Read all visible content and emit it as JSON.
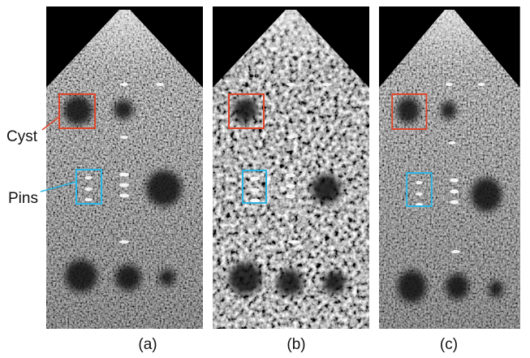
{
  "annotations": {
    "cyst": "Cyst",
    "pins": "Pins"
  },
  "panels": [
    {
      "label": "(a)"
    },
    {
      "label": "(b)"
    },
    {
      "label": "(c)"
    }
  ]
}
